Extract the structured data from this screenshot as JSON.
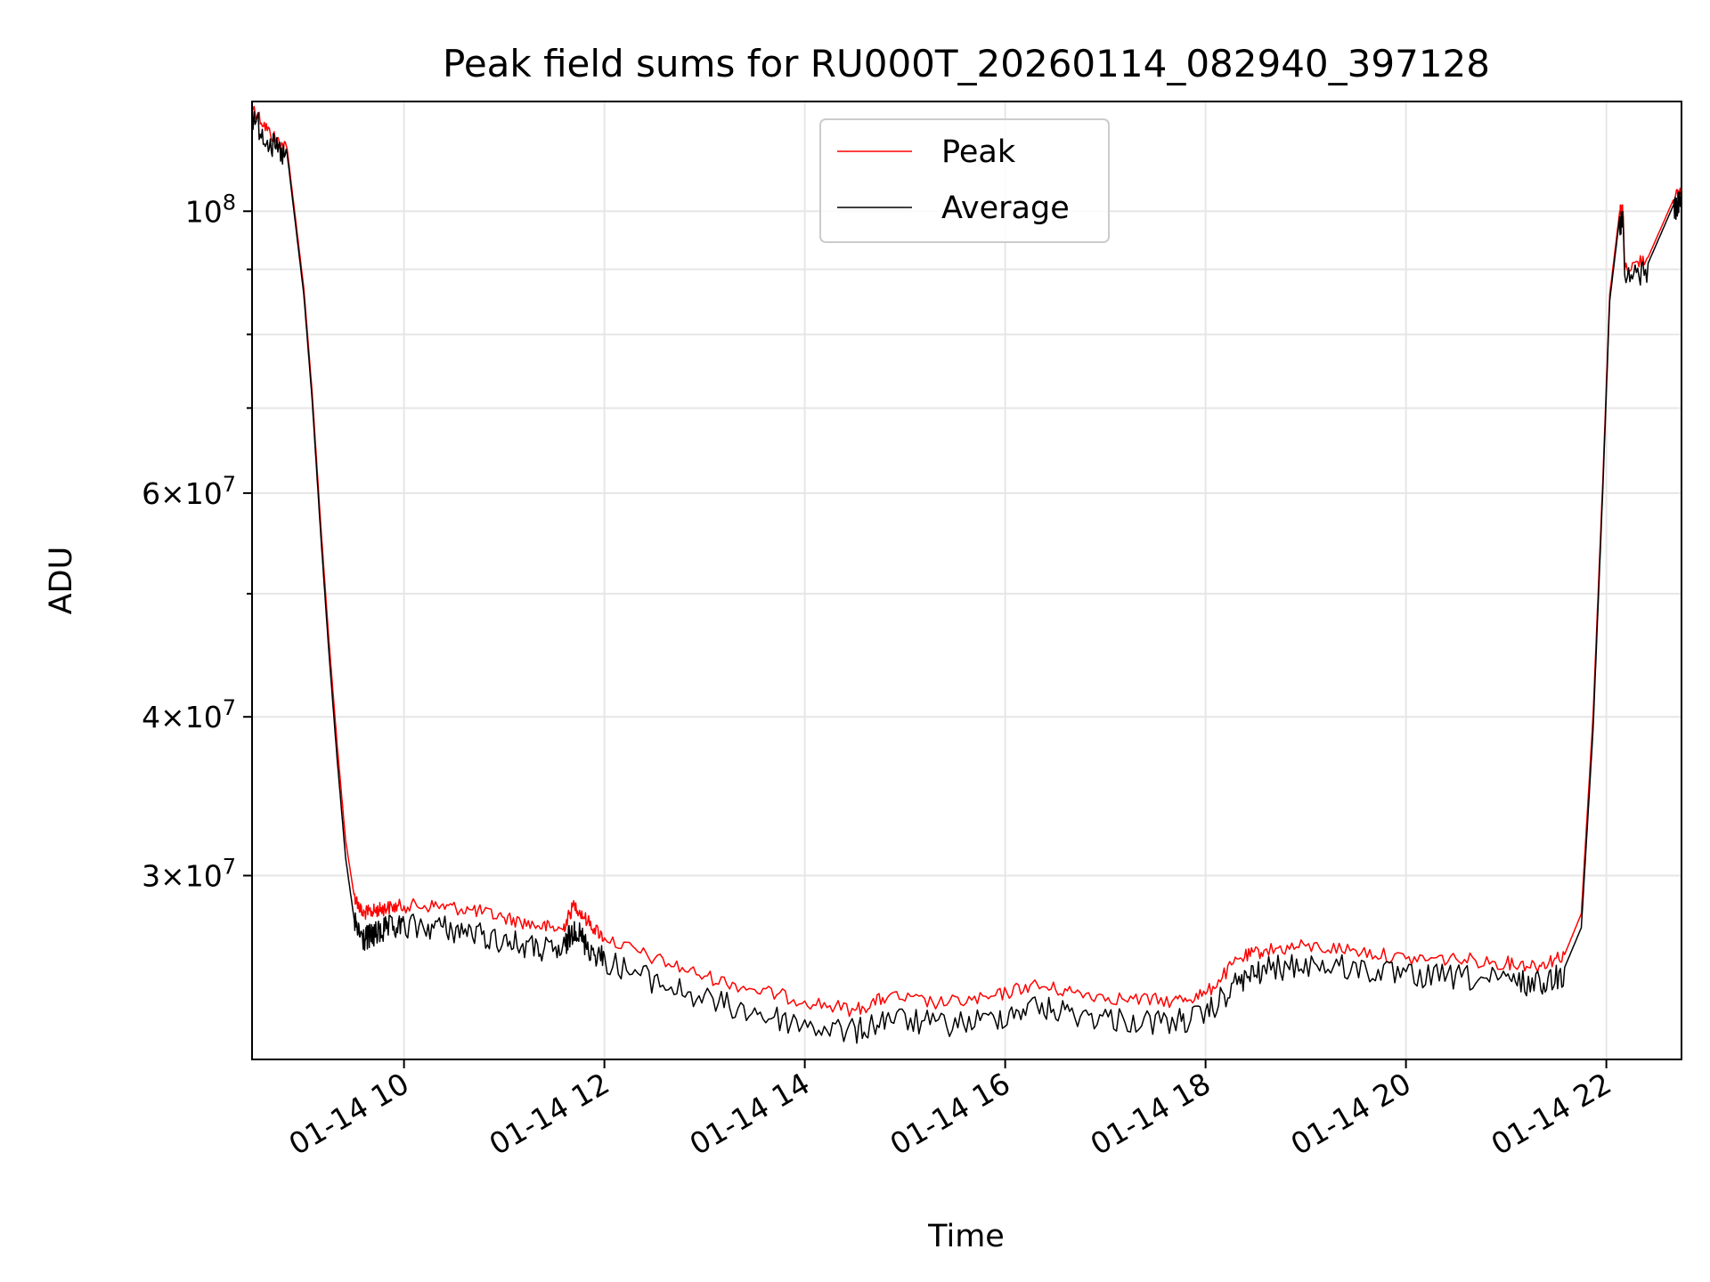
{
  "chart_data": {
    "type": "line",
    "title": "Peak field sums for RU000T_20260114_082940_397128",
    "xlabel": "Time",
    "ylabel": "ADU",
    "y_scale": "log",
    "xlim": [
      "2026-01-14 08:29",
      "2026-01-14 22:45"
    ],
    "ylim": [
      21500000,
      122000000
    ],
    "grid": true,
    "legend_position": "top-center",
    "x_tick_labels": [
      "01-14 10",
      "01-14 12",
      "01-14 14",
      "01-14 16",
      "01-14 18",
      "01-14 20",
      "01-14 22"
    ],
    "x_ticks": [
      "2026-01-14 10:00",
      "2026-01-14 12:00",
      "2026-01-14 14:00",
      "2026-01-14 16:00",
      "2026-01-14 18:00",
      "2026-01-14 20:00",
      "2026-01-14 22:00"
    ],
    "y_major_ticks": [
      {
        "value": 30000000,
        "mantissa": "3",
        "base": "10",
        "exp": "7"
      },
      {
        "value": 40000000,
        "mantissa": "4",
        "base": "10",
        "exp": "7"
      },
      {
        "value": 60000000,
        "mantissa": "6",
        "base": "10",
        "exp": "7"
      },
      {
        "value": 100000000,
        "mantissa": "",
        "base": "10",
        "exp": "8"
      }
    ],
    "y_minor_ticks": [
      50000000,
      70000000,
      80000000,
      90000000
    ],
    "series": [
      {
        "name": "Peak",
        "color": "#ff0000",
        "x": [
          "2026-01-14 08:29",
          "2026-01-14 08:40",
          "2026-01-14 08:50",
          "2026-01-14 09:00",
          "2026-01-14 09:05",
          "2026-01-14 09:10",
          "2026-01-14 09:15",
          "2026-01-14 09:20",
          "2026-01-14 09:25",
          "2026-01-14 09:30",
          "2026-01-14 09:35",
          "2026-01-14 09:40",
          "2026-01-14 09:45",
          "2026-01-14 09:50",
          "2026-01-14 10:00",
          "2026-01-14 10:20",
          "2026-01-14 10:40",
          "2026-01-14 11:00",
          "2026-01-14 11:20",
          "2026-01-14 11:35",
          "2026-01-14 11:42",
          "2026-01-14 11:50",
          "2026-01-14 12:00",
          "2026-01-14 12:30",
          "2026-01-14 13:00",
          "2026-01-14 13:30",
          "2026-01-14 14:00",
          "2026-01-14 14:30",
          "2026-01-14 14:50",
          "2026-01-14 15:20",
          "2026-01-14 15:50",
          "2026-01-14 16:15",
          "2026-01-14 16:40",
          "2026-01-14 17:10",
          "2026-01-14 17:40",
          "2026-01-14 18:00",
          "2026-01-14 18:20",
          "2026-01-14 18:35",
          "2026-01-14 19:00",
          "2026-01-14 19:30",
          "2026-01-14 20:00",
          "2026-01-14 20:30",
          "2026-01-14 21:00",
          "2026-01-14 21:20",
          "2026-01-14 21:35",
          "2026-01-14 21:45",
          "2026-01-14 21:52",
          "2026-01-14 21:58",
          "2026-01-14 22:02",
          "2026-01-14 22:08",
          "2026-01-14 22:10",
          "2026-01-14 22:11",
          "2026-01-14 22:25",
          "2026-01-14 22:40",
          "2026-01-14 22:45"
        ],
        "y": [
          121000000,
          115000000,
          112000000,
          87000000,
          72000000,
          57000000,
          46000000,
          38000000,
          32000000,
          29000000,
          28000000,
          28100000,
          28200000,
          28300000,
          28400000,
          28400000,
          28200000,
          27800000,
          27400000,
          27200000,
          28500000,
          27600000,
          26800000,
          25800000,
          25000000,
          24400000,
          23900000,
          23500000,
          24100000,
          23800000,
          24000000,
          24600000,
          24300000,
          24000000,
          23900000,
          24200000,
          25800000,
          26200000,
          26400000,
          26200000,
          25800000,
          25800000,
          25600000,
          25500000,
          26000000,
          28000000,
          40000000,
          62000000,
          86000000,
          100000000,
          100000000,
          90000000,
          92000000,
          102000000,
          104000000
        ]
      },
      {
        "name": "Average",
        "color": "#000000",
        "x": [
          "2026-01-14 08:29",
          "2026-01-14 08:40",
          "2026-01-14 08:50",
          "2026-01-14 09:00",
          "2026-01-14 09:05",
          "2026-01-14 09:10",
          "2026-01-14 09:15",
          "2026-01-14 09:20",
          "2026-01-14 09:25",
          "2026-01-14 09:30",
          "2026-01-14 09:35",
          "2026-01-14 09:40",
          "2026-01-14 09:45",
          "2026-01-14 09:50",
          "2026-01-14 10:00",
          "2026-01-14 10:20",
          "2026-01-14 10:40",
          "2026-01-14 11:00",
          "2026-01-14 11:20",
          "2026-01-14 11:35",
          "2026-01-14 11:42",
          "2026-01-14 11:50",
          "2026-01-14 12:00",
          "2026-01-14 12:30",
          "2026-01-14 13:00",
          "2026-01-14 13:30",
          "2026-01-14 14:00",
          "2026-01-14 14:30",
          "2026-01-14 14:50",
          "2026-01-14 15:20",
          "2026-01-14 15:50",
          "2026-01-14 16:15",
          "2026-01-14 16:40",
          "2026-01-14 17:10",
          "2026-01-14 17:40",
          "2026-01-14 18:00",
          "2026-01-14 18:20",
          "2026-01-14 18:35",
          "2026-01-14 19:00",
          "2026-01-14 19:30",
          "2026-01-14 20:00",
          "2026-01-14 20:30",
          "2026-01-14 21:00",
          "2026-01-14 21:20",
          "2026-01-14 21:35",
          "2026-01-14 21:45",
          "2026-01-14 21:52",
          "2026-01-14 21:58",
          "2026-01-14 22:02",
          "2026-01-14 22:08",
          "2026-01-14 22:10",
          "2026-01-14 22:11",
          "2026-01-14 22:25",
          "2026-01-14 22:40",
          "2026-01-14 22:45"
        ],
        "y": [
          120000000,
          114000000,
          111000000,
          86000000,
          71000000,
          56000000,
          45000000,
          37000000,
          31000000,
          27800000,
          27000000,
          27100000,
          27300000,
          27500000,
          27600000,
          27600000,
          27300000,
          26900000,
          26500000,
          26400000,
          27600000,
          26600000,
          26000000,
          25000000,
          24200000,
          23600000,
          23100000,
          22800000,
          23400000,
          23100000,
          23300000,
          23900000,
          23600000,
          23300000,
          23200000,
          23500000,
          25000000,
          25500000,
          25800000,
          25600000,
          25200000,
          25200000,
          25000000,
          24900000,
          25400000,
          27300000,
          39000000,
          61000000,
          85000000,
          99000000,
          99000000,
          89000000,
          91000000,
          101000000,
          103000000
        ]
      }
    ]
  }
}
